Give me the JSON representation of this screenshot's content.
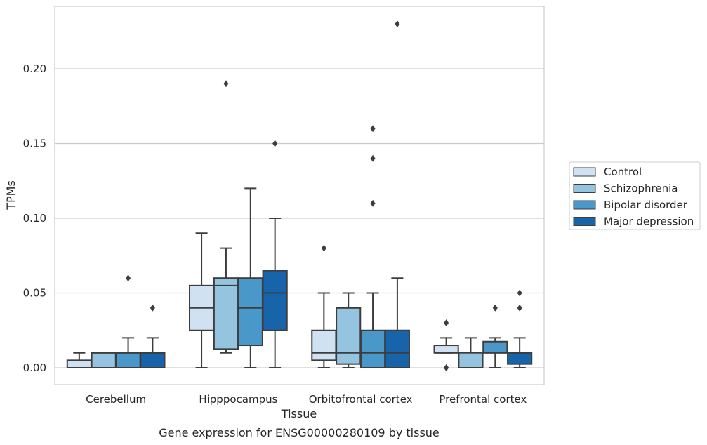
{
  "chart_data": {
    "type": "box",
    "title": "",
    "caption": "Gene expression for ENSG00000280109 by tissue",
    "xlabel": "Tissue",
    "ylabel": "TPMs",
    "ylim": [
      -0.011,
      0.242
    ],
    "yticks": [
      0.0,
      0.05,
      0.1,
      0.15,
      0.2
    ],
    "ytick_labels": [
      "0.00",
      "0.05",
      "0.10",
      "0.15",
      "0.20"
    ],
    "grid": "horizontal",
    "legend_position": "right, outside",
    "categories": [
      "Cerebellum",
      "Hipppocampus",
      "Orbitofrontal cortex",
      "Prefrontal cortex"
    ],
    "series": [
      {
        "name": "Control",
        "color": "#d0e1f2",
        "boxes": [
          {
            "whisker_low": 0.0,
            "q1": 0.0,
            "median": 0.0,
            "q3": 0.005,
            "whisker_high": 0.01,
            "outliers": []
          },
          {
            "whisker_low": 0.0,
            "q1": 0.025,
            "median": 0.04,
            "q3": 0.055,
            "whisker_high": 0.09,
            "outliers": []
          },
          {
            "whisker_low": 0.0,
            "q1": 0.005,
            "median": 0.01,
            "q3": 0.025,
            "whisker_high": 0.05,
            "outliers": [
              0.08
            ]
          },
          {
            "whisker_low": 0.01,
            "q1": 0.01,
            "median": 0.01,
            "q3": 0.015,
            "whisker_high": 0.02,
            "outliers": [
              0.0,
              0.0,
              0.03
            ]
          }
        ]
      },
      {
        "name": "Schizophrenia",
        "color": "#94c4df",
        "boxes": [
          {
            "whisker_low": 0.0,
            "q1": 0.0,
            "median": 0.01,
            "q3": 0.01,
            "whisker_high": 0.01,
            "outliers": []
          },
          {
            "whisker_low": 0.01,
            "q1": 0.0125,
            "median": 0.055,
            "q3": 0.06,
            "whisker_high": 0.08,
            "outliers": [
              0.19
            ]
          },
          {
            "whisker_low": 0.0,
            "q1": 0.0025,
            "median": 0.01,
            "q3": 0.04,
            "whisker_high": 0.05,
            "outliers": []
          },
          {
            "whisker_low": 0.0,
            "q1": 0.0,
            "median": 0.0,
            "q3": 0.01,
            "whisker_high": 0.02,
            "outliers": []
          }
        ]
      },
      {
        "name": "Bipolar disorder",
        "color": "#4a98c9",
        "boxes": [
          {
            "whisker_low": 0.0,
            "q1": 0.0,
            "median": 0.01,
            "q3": 0.01,
            "whisker_high": 0.02,
            "outliers": [
              0.06
            ]
          },
          {
            "whisker_low": 0.0,
            "q1": 0.015,
            "median": 0.04,
            "q3": 0.06,
            "whisker_high": 0.12,
            "outliers": []
          },
          {
            "whisker_low": 0.0,
            "q1": 0.0,
            "median": 0.01,
            "q3": 0.025,
            "whisker_high": 0.05,
            "outliers": [
              0.16,
              0.14,
              0.11
            ]
          },
          {
            "whisker_low": 0.0,
            "q1": 0.01,
            "median": 0.01,
            "q3": 0.0175,
            "whisker_high": 0.02,
            "outliers": [
              0.04
            ]
          }
        ]
      },
      {
        "name": "Major depression",
        "color": "#1764ab",
        "boxes": [
          {
            "whisker_low": 0.0,
            "q1": 0.0,
            "median": 0.01,
            "q3": 0.01,
            "whisker_high": 0.02,
            "outliers": [
              0.04
            ]
          },
          {
            "whisker_low": 0.0,
            "q1": 0.025,
            "median": 0.05,
            "q3": 0.065,
            "whisker_high": 0.1,
            "outliers": [
              0.15
            ]
          },
          {
            "whisker_low": 0.0,
            "q1": 0.0,
            "median": 0.01,
            "q3": 0.025,
            "whisker_high": 0.06,
            "outliers": [
              0.23
            ]
          },
          {
            "whisker_low": 0.0,
            "q1": 0.0025,
            "median": 0.01,
            "q3": 0.01,
            "whisker_high": 0.02,
            "outliers": [
              0.05,
              0.04
            ]
          }
        ]
      }
    ]
  }
}
